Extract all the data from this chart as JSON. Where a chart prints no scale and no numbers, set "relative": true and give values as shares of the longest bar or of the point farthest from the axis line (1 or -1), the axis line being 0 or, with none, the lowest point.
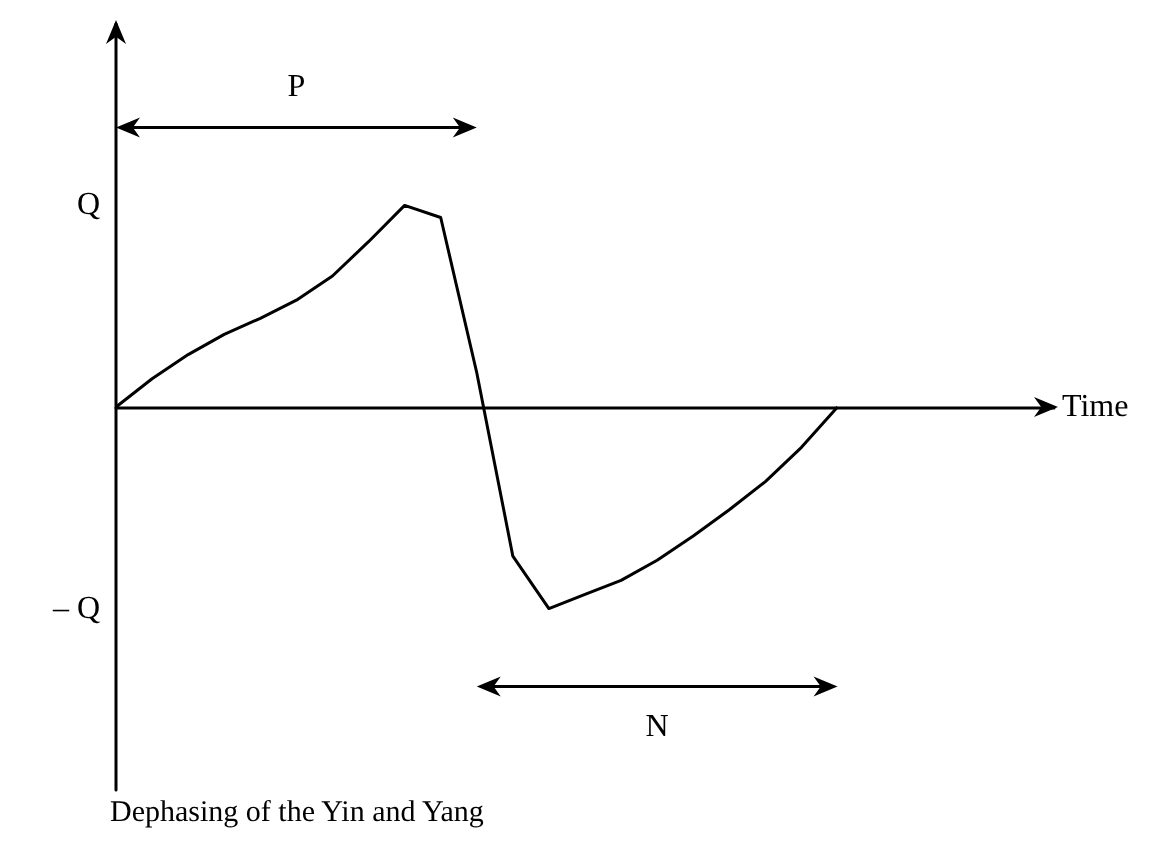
{
  "chart_data": {
    "type": "line",
    "title": "Dephasing of the Yin and Yang",
    "xlabel": "Time",
    "categories": [
      null,
      null,
      null,
      null,
      null,
      null,
      null,
      null,
      null,
      null,
      null,
      null,
      null,
      null,
      null,
      null,
      null,
      null,
      null,
      null,
      null,
      null,
      null,
      null,
      null,
      null,
      null
    ],
    "values": [
      0,
      0.14,
      0.26,
      0.36,
      0.44,
      0.53,
      0.65,
      0.82,
      1,
      0.94,
      0.17,
      -0.74,
      -1,
      -0.93,
      -0.86,
      -0.76,
      -0.64,
      -0.51,
      -0.37,
      -0.2,
      0,
      null,
      null,
      null,
      null,
      null,
      null
    ],
    "color": "#000000",
    "marker": "none",
    "line_style": "solid",
    "relative": true,
    "annotations": [
      "P",
      "N",
      "Q",
      "– Q"
    ]
  }
}
